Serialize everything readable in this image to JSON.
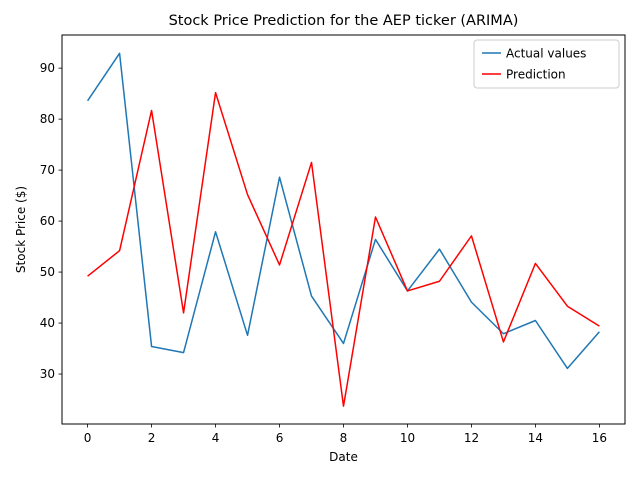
{
  "chart_data": {
    "type": "line",
    "title": "Stock Price Prediction for the AEP ticker (ARIMA)",
    "xlabel": "Date",
    "ylabel": "Stock Price ($)",
    "xlim": [
      -0.8,
      16.8
    ],
    "ylim": [
      20.2,
      96.5
    ],
    "x_ticks": [
      0,
      2,
      4,
      6,
      8,
      10,
      12,
      14,
      16
    ],
    "y_ticks": [
      30,
      40,
      50,
      60,
      70,
      80,
      90
    ],
    "grid": false,
    "legend_position": "top-right",
    "x": [
      0,
      1,
      2,
      3,
      4,
      5,
      6,
      7,
      8,
      9,
      10,
      11,
      12,
      13,
      14,
      15,
      16
    ],
    "series": [
      {
        "name": "Actual values",
        "color": "#1f77b4",
        "values": [
          83.6,
          92.9,
          35.4,
          34.2,
          57.9,
          37.6,
          68.6,
          45.3,
          36.0,
          56.4,
          46.3,
          54.5,
          44.1,
          37.9,
          40.5,
          31.1,
          38.3
        ]
      },
      {
        "name": "Prediction",
        "color": "#ff0000",
        "values": [
          49.2,
          54.2,
          81.7,
          42.0,
          85.2,
          65.2,
          51.4,
          71.5,
          23.7,
          60.8,
          46.3,
          48.2,
          57.1,
          36.3,
          51.7,
          43.3,
          39.4
        ]
      }
    ]
  }
}
